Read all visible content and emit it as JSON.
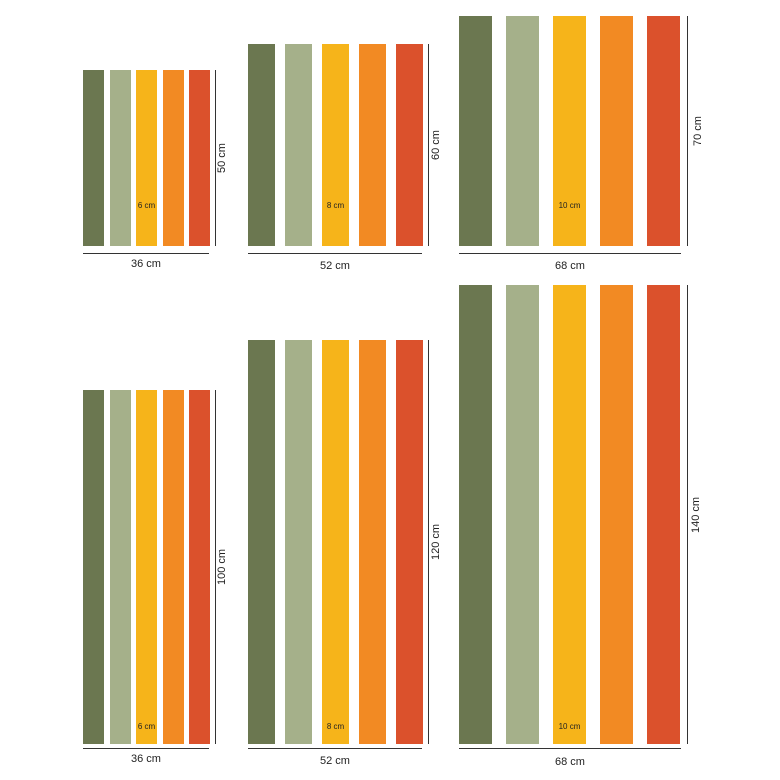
{
  "colors": [
    "#6b7750",
    "#a5b08a",
    "#f6b41a",
    "#f28a23",
    "#db512c"
  ],
  "panels": [
    {
      "stripe_width": "6 cm",
      "width": "36 cm",
      "height": "50 cm"
    },
    {
      "stripe_width": "8 cm",
      "width": "52 cm",
      "height": "60 cm"
    },
    {
      "stripe_width": "10 cm",
      "width": "68 cm",
      "height": "70 cm"
    },
    {
      "stripe_width": "6 cm",
      "width": "36 cm",
      "height": "100 cm"
    },
    {
      "stripe_width": "8 cm",
      "width": "52 cm",
      "height": "120 cm"
    },
    {
      "stripe_width": "10 cm",
      "width": "68 cm",
      "height": "140 cm"
    }
  ]
}
